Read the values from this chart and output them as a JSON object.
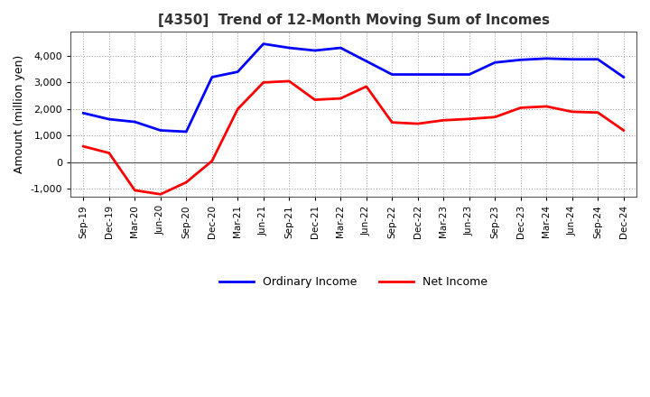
{
  "title": "[4350]  Trend of 12-Month Moving Sum of Incomes",
  "ylabel": "Amount (million yen)",
  "xlabels": [
    "Sep-19",
    "Dec-19",
    "Mar-20",
    "Jun-20",
    "Sep-20",
    "Dec-20",
    "Mar-21",
    "Jun-21",
    "Sep-21",
    "Dec-21",
    "Mar-22",
    "Jun-22",
    "Sep-22",
    "Dec-22",
    "Mar-23",
    "Jun-23",
    "Sep-23",
    "Dec-23",
    "Mar-24",
    "Jun-24",
    "Sep-24",
    "Dec-24"
  ],
  "ordinary_income": [
    1850,
    1620,
    1520,
    1200,
    1150,
    3200,
    3400,
    4450,
    4300,
    4200,
    4300,
    3800,
    3300,
    3300,
    3300,
    3300,
    3750,
    3850,
    3900,
    3870,
    3870,
    3200
  ],
  "net_income": [
    600,
    350,
    -1050,
    -1200,
    -750,
    50,
    2000,
    3000,
    3050,
    2350,
    2400,
    2850,
    1500,
    1450,
    1580,
    1630,
    1700,
    2050,
    2100,
    1900,
    1870,
    1200
  ],
  "ordinary_color": "#0000FF",
  "net_color": "#FF0000",
  "ylim": [
    -1300,
    4900
  ],
  "yticks": [
    -1000,
    0,
    1000,
    2000,
    3000,
    4000
  ],
  "grid_color": "#999999",
  "title_color": "#333333"
}
